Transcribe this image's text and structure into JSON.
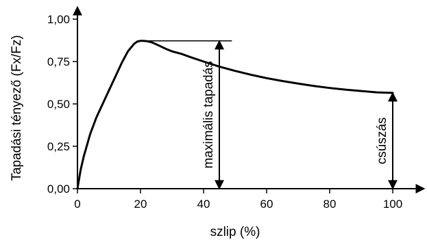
{
  "chart_data": {
    "type": "line",
    "xlabel": "szlip (%)",
    "ylabel": "Tapadási tényező (Fx/Fz)",
    "xlim": [
      0,
      110
    ],
    "ylim": [
      0,
      1.05
    ],
    "x_ticks": [
      0,
      20,
      40,
      60,
      80,
      100
    ],
    "x_tick_labels": [
      "0",
      "20",
      "40",
      "60",
      "80",
      "100"
    ],
    "y_ticks": [
      0,
      0.25,
      0.5,
      0.75,
      1.0
    ],
    "y_tick_labels": [
      "0,00",
      "0,25",
      "0,50",
      "0,75",
      "1,00"
    ],
    "grid": false,
    "series": [
      {
        "x": [
          0,
          1,
          2,
          4,
          6,
          8,
          10,
          12,
          14,
          16,
          18,
          19,
          20,
          21,
          22,
          23,
          24,
          26,
          28,
          30,
          33,
          36,
          40,
          45,
          50,
          55,
          60,
          65,
          70,
          75,
          80,
          85,
          90,
          95,
          100
        ],
        "y": [
          0,
          0.11,
          0.19,
          0.32,
          0.42,
          0.5,
          0.58,
          0.66,
          0.74,
          0.81,
          0.855,
          0.868,
          0.872,
          0.872,
          0.87,
          0.866,
          0.86,
          0.843,
          0.825,
          0.81,
          0.795,
          0.775,
          0.75,
          0.72,
          0.695,
          0.672,
          0.652,
          0.635,
          0.62,
          0.606,
          0.594,
          0.584,
          0.576,
          0.568,
          0.565
        ]
      }
    ],
    "annotations": {
      "max_adhesion": {
        "label": "maximális tapadás",
        "x": 45,
        "y_from": 0,
        "y_to": 0.872,
        "guide_x_from": 20,
        "guide_x_to": 49
      },
      "sliding": {
        "label": "csúszás",
        "x": 100,
        "y_from": 0,
        "y_to": 0.565
      }
    }
  }
}
